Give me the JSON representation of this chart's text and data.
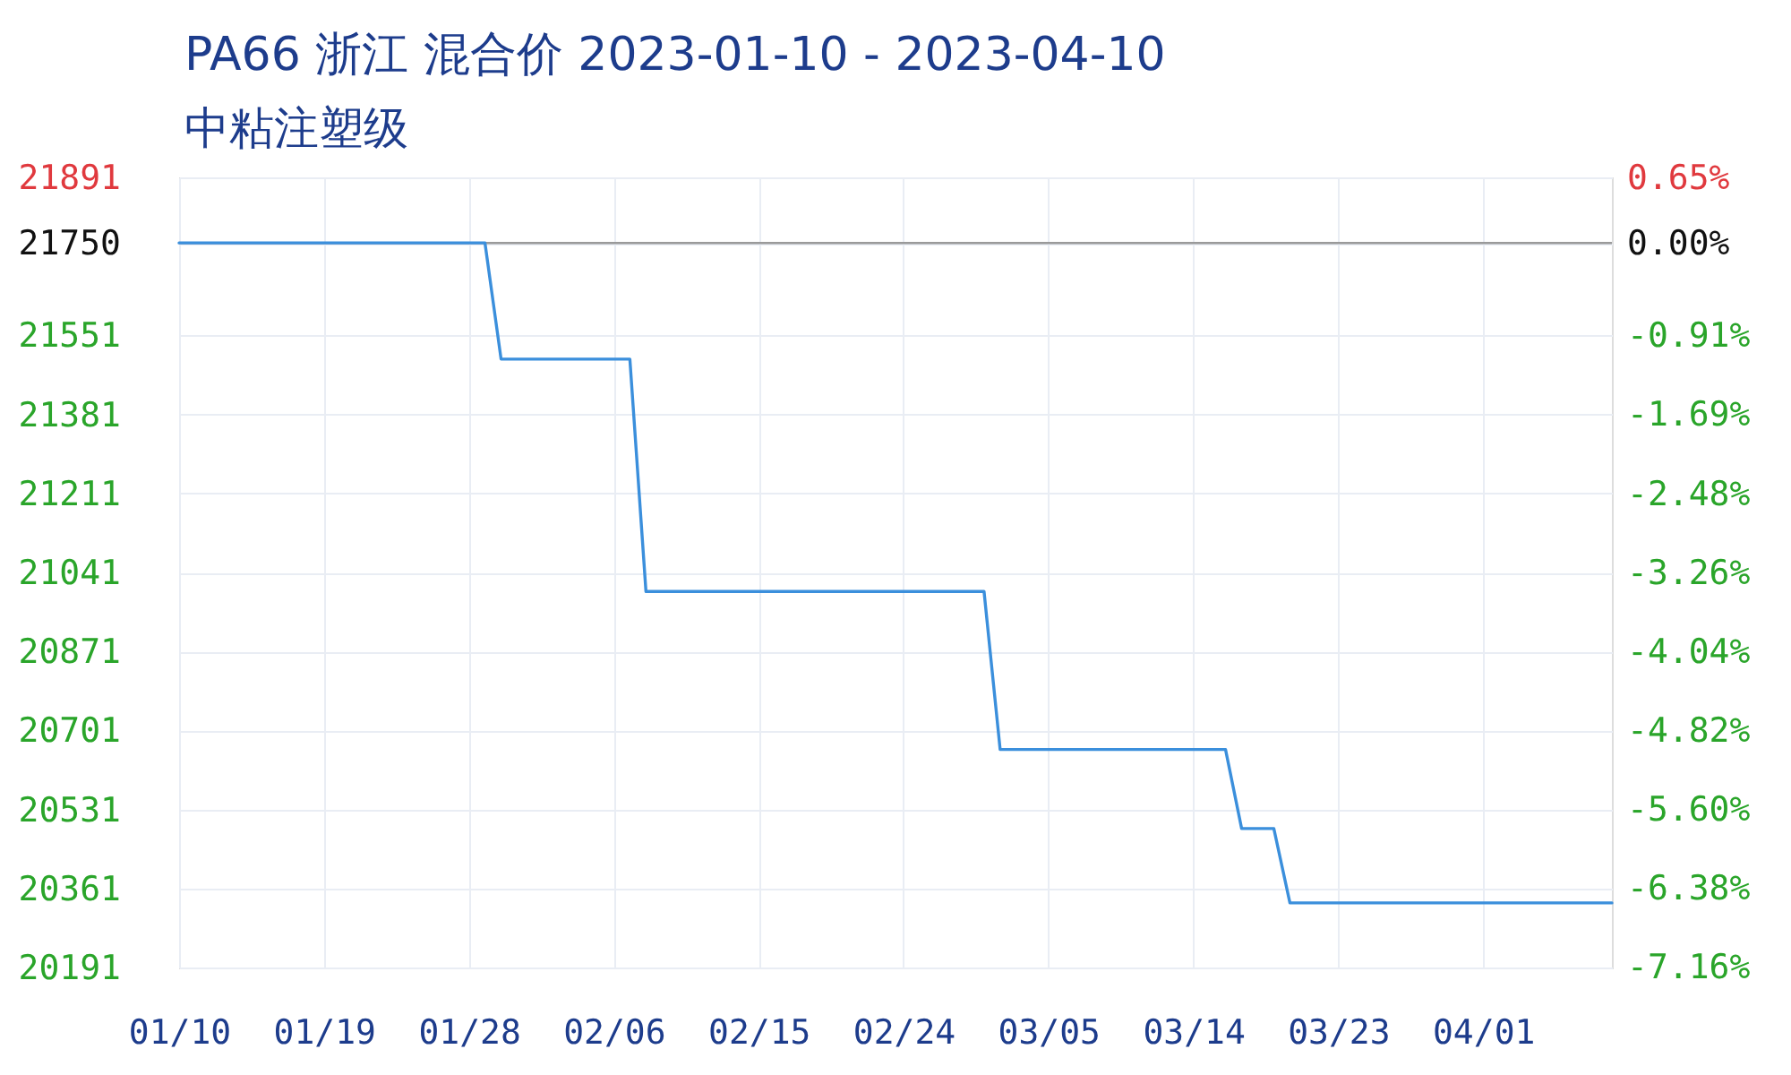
{
  "chart_data": {
    "type": "line",
    "title": "PA66 浙江 混合价 2023-01-10 - 2023-04-10",
    "subtitle": "中粘注塑级",
    "series": [
      {
        "color": "#3b8fdc",
        "x": [
          "2023-01-10",
          "2023-01-29",
          "2023-01-30",
          "2023-02-07",
          "2023-02-08",
          "2023-03-01",
          "2023-03-02",
          "2023-03-16",
          "2023-03-17",
          "2023-03-19",
          "2023-03-20",
          "2023-04-09"
        ],
        "values": [
          21750,
          21750,
          21500,
          21500,
          21000,
          21000,
          20660,
          20660,
          20490,
          20490,
          20330,
          20330
        ]
      }
    ],
    "xlim": [
      "2023-01-10",
      "2023-04-09"
    ],
    "xticks": [
      {
        "value": "2023-01-10",
        "label": "01/10"
      },
      {
        "value": "2023-01-19",
        "label": "01/19"
      },
      {
        "value": "2023-01-28",
        "label": "01/28"
      },
      {
        "value": "2023-02-06",
        "label": "02/06"
      },
      {
        "value": "2023-02-15",
        "label": "02/15"
      },
      {
        "value": "2023-02-24",
        "label": "02/24"
      },
      {
        "value": "2023-03-05",
        "label": "03/05"
      },
      {
        "value": "2023-03-14",
        "label": "03/14"
      },
      {
        "value": "2023-03-23",
        "label": "03/23"
      },
      {
        "value": "2023-04-01",
        "label": "04/01"
      }
    ],
    "ylim": [
      20191,
      21891
    ],
    "yticks": [
      21891,
      21750,
      21551,
      21381,
      21211,
      21041,
      20871,
      20701,
      20531,
      20361,
      20191
    ],
    "y2lim": [
      -7.17,
      0.65
    ],
    "y2ticks": [
      {
        "value": 0.65,
        "label": "0.65%"
      },
      {
        "value": 0,
        "label": "0.00%"
      },
      {
        "value": -0.91,
        "label": "-0.91%"
      },
      {
        "value": -1.69,
        "label": "-1.69%"
      },
      {
        "value": -2.48,
        "label": "-2.48%"
      },
      {
        "value": -3.26,
        "label": "-3.26%"
      },
      {
        "value": -4.04,
        "label": "-4.04%"
      },
      {
        "value": -4.82,
        "label": "-4.82%"
      },
      {
        "value": -5.6,
        "label": "-5.60%"
      },
      {
        "value": -6.38,
        "label": "-6.38%"
      },
      {
        "value": -7.16,
        "label": "-7.16%"
      }
    ],
    "ref_lines": [
      {
        "axis": "y2",
        "value": 0,
        "color": "#9a9a9a"
      }
    ],
    "grid": true,
    "line_style": "solid"
  }
}
